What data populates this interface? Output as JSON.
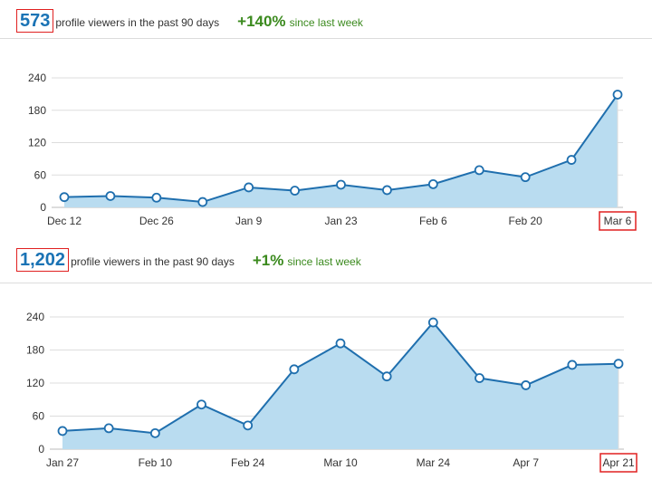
{
  "panels": [
    {
      "count": "573",
      "viewers_text": "profile viewers in the past 90 days",
      "change_pct": "+140%",
      "change_text": "since last week"
    },
    {
      "count": "1,202",
      "viewers_text": "profile viewers in the past 90 days",
      "change_pct": "+1%",
      "change_text": "since last week"
    }
  ],
  "colors": {
    "accent": "#1a73b5",
    "positive": "#3b8a1e",
    "line": "#1f6fae",
    "area_fill": "#b9dcf0",
    "highlight": "#e02020"
  },
  "chart_data": [
    {
      "type": "area",
      "title": "",
      "xlabel": "",
      "ylabel": "",
      "ylim": [
        0,
        240
      ],
      "yticks": [
        0,
        60,
        120,
        180,
        240
      ],
      "grid": true,
      "x_labels": [
        "Dec 12",
        "Dec 26",
        "Jan 9",
        "Jan 23",
        "Feb 6",
        "Feb 20",
        "Mar 6"
      ],
      "highlighted_label": "Mar 6",
      "values": [
        19,
        21,
        18,
        10,
        37,
        31,
        42,
        32,
        43,
        69,
        56,
        88,
        209
      ]
    },
    {
      "type": "area",
      "title": "",
      "xlabel": "",
      "ylabel": "",
      "ylim": [
        0,
        240
      ],
      "yticks": [
        0,
        60,
        120,
        180,
        240
      ],
      "grid": true,
      "x_labels": [
        "Jan 27",
        "Feb 10",
        "Feb 24",
        "Mar 10",
        "Mar 24",
        "Apr 7",
        "Apr 21"
      ],
      "highlighted_label": "Apr 21",
      "values": [
        33,
        38,
        29,
        81,
        43,
        145,
        192,
        132,
        230,
        129,
        116,
        153,
        155
      ]
    }
  ]
}
